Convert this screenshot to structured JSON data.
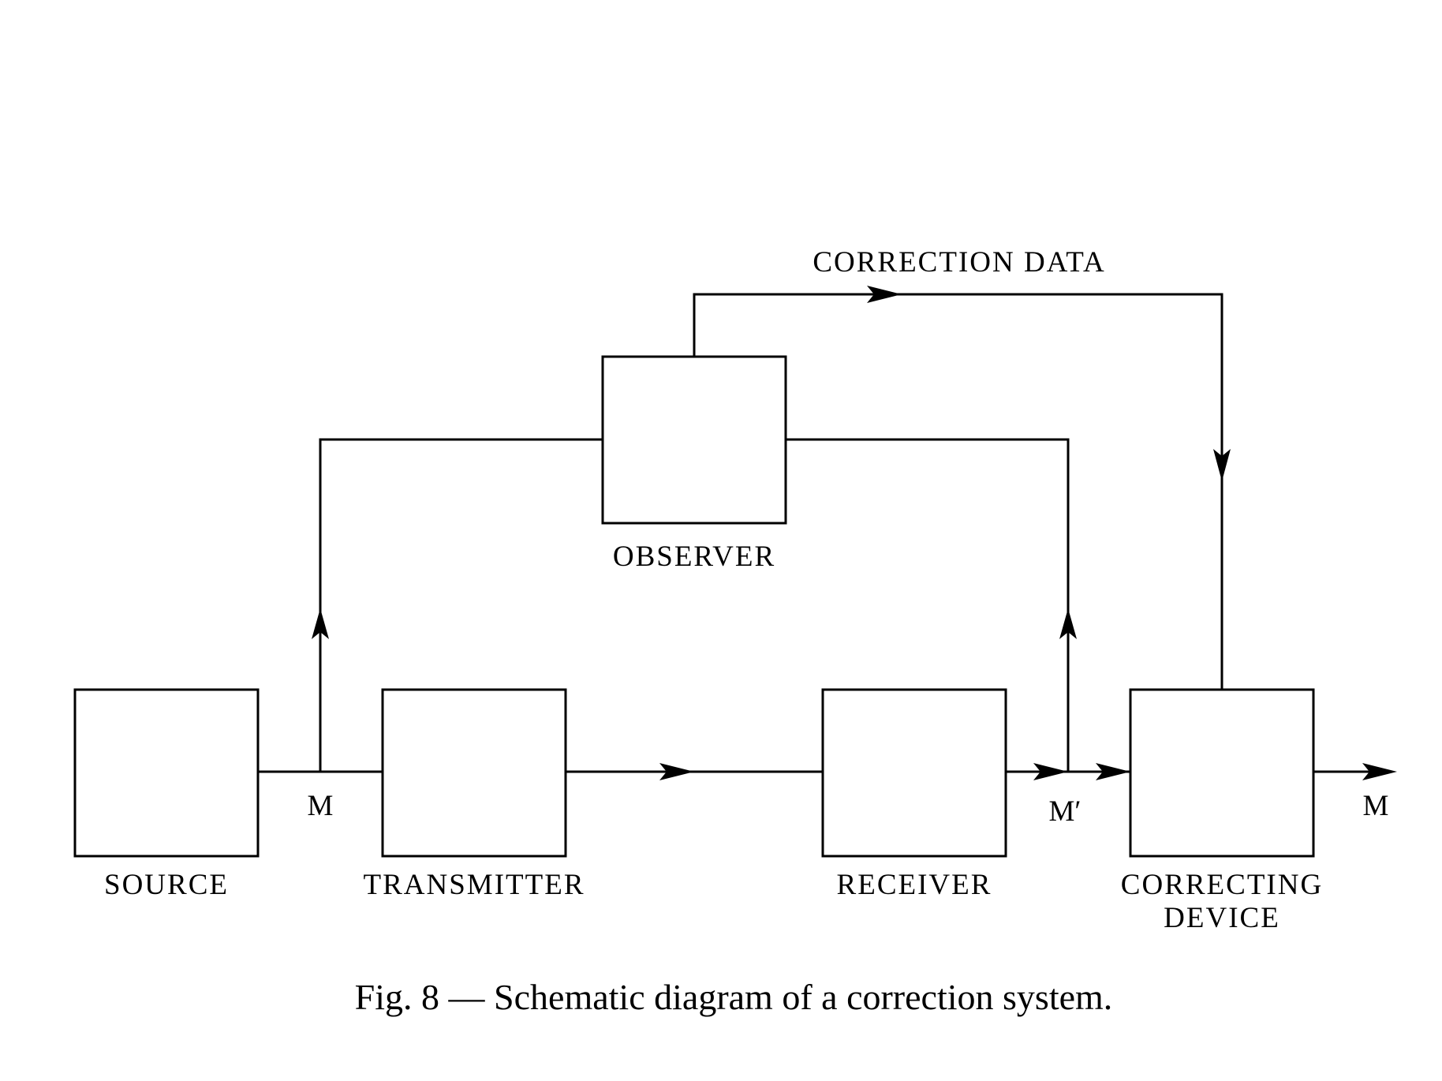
{
  "blocks": {
    "source": "SOURCE",
    "transmitter": "TRANSMITTER",
    "receiver": "RECEIVER",
    "observer": "OBSERVER",
    "correcting_device_line1": "CORRECTING",
    "correcting_device_line2": "DEVICE"
  },
  "signals": {
    "message": "M",
    "received_message": "M′",
    "corrected_message": "M",
    "correction_data": "CORRECTION DATA"
  },
  "caption": "Fig. 8 — Schematic diagram of a correction system.",
  "colors": {
    "ink": "#000000",
    "background": "#ffffff"
  }
}
